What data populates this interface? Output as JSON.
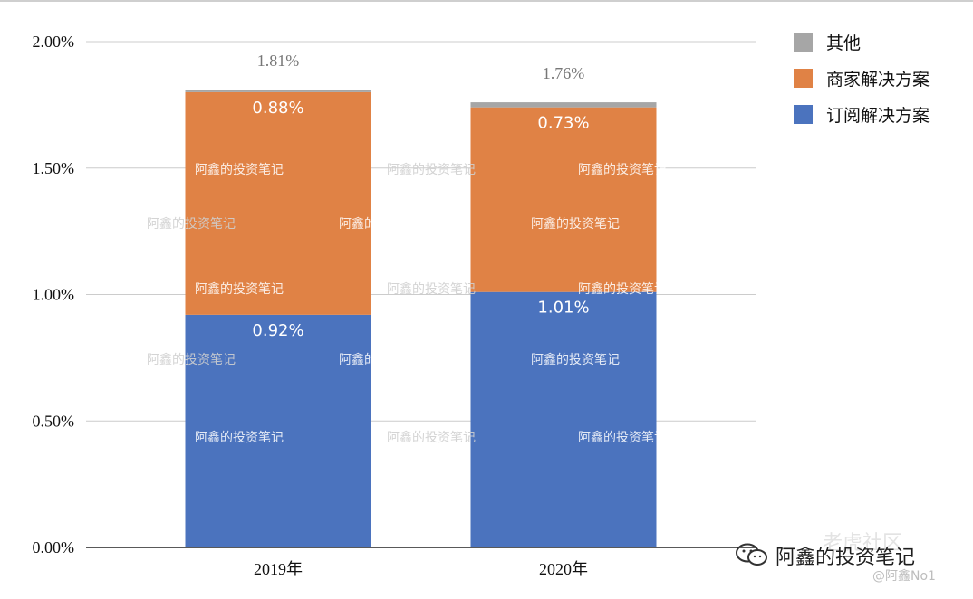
{
  "chart_data": {
    "type": "bar",
    "stacked": true,
    "categories": [
      "2019年",
      "2020年"
    ],
    "series": [
      {
        "name": "订阅解决方案",
        "values": [
          0.92,
          1.01
        ],
        "labels": [
          "0.92%",
          "1.01%"
        ],
        "color": "#4b73be"
      },
      {
        "name": "商家解决方案",
        "values": [
          0.88,
          0.73
        ],
        "labels": [
          "0.88%",
          "0.73%"
        ],
        "color": "#e08245"
      },
      {
        "name": "其他",
        "values": [
          0.01,
          0.02
        ],
        "color": "#a6a6a6"
      }
    ],
    "totals": [
      "1.81%",
      "1.76%"
    ],
    "total_values": [
      1.81,
      1.76
    ],
    "ylim": [
      0,
      2.0
    ],
    "yticks": [
      0,
      0.5,
      1.0,
      1.5,
      2.0
    ],
    "ytick_labels": [
      "0.00%",
      "0.50%",
      "1.00%",
      "1.50%",
      "2.00%"
    ],
    "grid": true,
    "legend_position": "top-right",
    "legend": [
      "其他",
      "商家解决方案",
      "订阅解决方案"
    ]
  },
  "watermark": {
    "text": "阿鑫的投资笔记",
    "footer_main": "阿鑫的投资笔记",
    "footer_sub": "@阿鑫No1",
    "footer_faint": "老虎社区",
    "icon": "wechat-icon"
  }
}
